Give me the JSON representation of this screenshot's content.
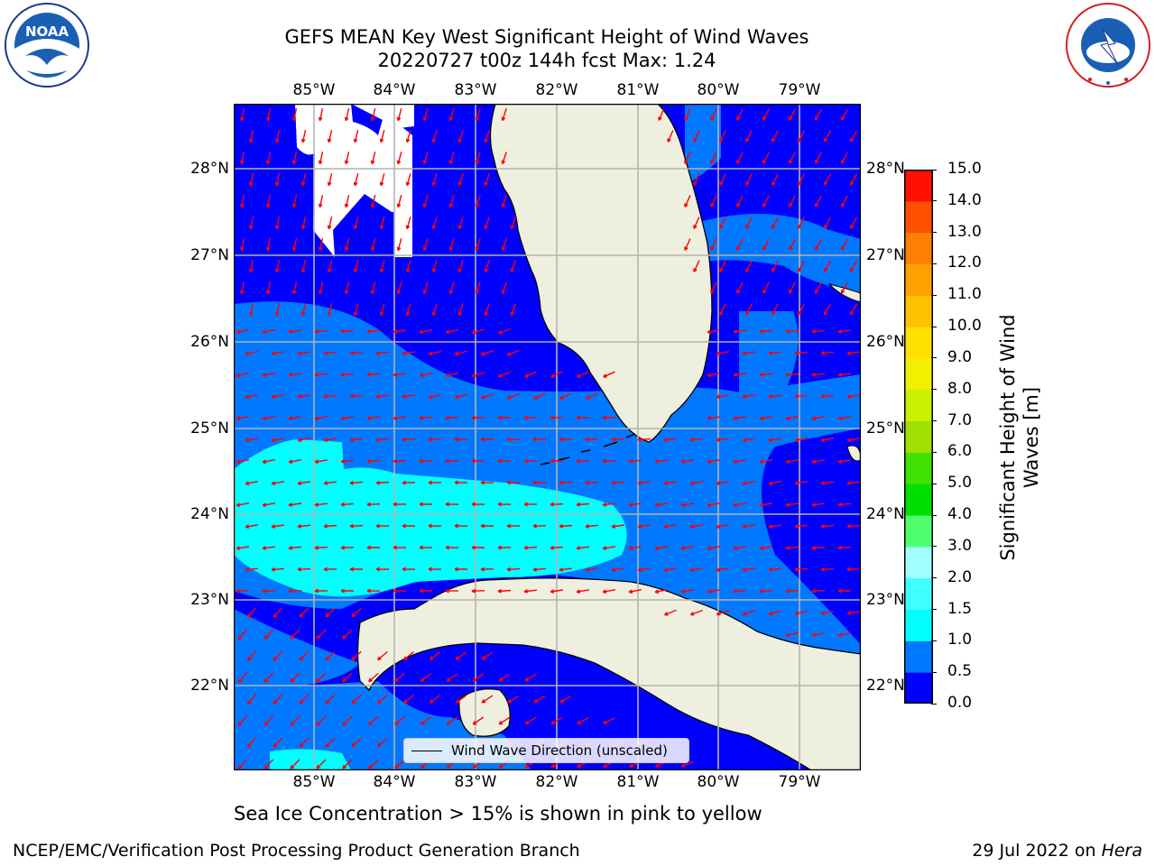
{
  "header": {
    "title_line1": "GEFS MEAN Key West Significant Height of Wind Waves",
    "title_line2": "20220727 t00z 144h fcst   Max: 1.24"
  },
  "logos": {
    "left": {
      "name": "noaa-logo",
      "text": "NOAA",
      "ring_text": "NATIONAL OCEANIC AND ATMOSPHERIC ADMINISTRATION · U.S. DEPARTMENT OF COMMERCE"
    },
    "right": {
      "name": "nws-logo",
      "ring_text": "NATIONAL WEATHER SERVICE"
    }
  },
  "map": {
    "lon_ticks": [
      "85°W",
      "84°W",
      "83°W",
      "82°W",
      "81°W",
      "80°W",
      "79°W"
    ],
    "lat_ticks": [
      "28°N",
      "27°N",
      "26°N",
      "25°N",
      "24°N",
      "23°N",
      "22°N"
    ],
    "legend_label": "Wind Wave Direction (unscaled)",
    "arrow_color": "#ff0000",
    "land_color": "#efefdf"
  },
  "colorbar": {
    "label_line1": "Significant Height of Wind",
    "label_line2": "Waves [m]",
    "ticks": [
      "0.0",
      "0.5",
      "1.0",
      "1.5",
      "2.0",
      "3.0",
      "4.0",
      "5.0",
      "6.0",
      "7.0",
      "8.0",
      "9.0",
      "10.0",
      "11.0",
      "12.0",
      "13.0",
      "14.0",
      "15.0"
    ],
    "colors": [
      "#0000ff",
      "#0078ff",
      "#00ffff",
      "#40ffff",
      "#a0ffff",
      "#50ff70",
      "#00e000",
      "#40e000",
      "#a0e000",
      "#c8f000",
      "#f0f000",
      "#ffe000",
      "#ffc000",
      "#ffa000",
      "#ff8000",
      "#ff5000",
      "#ff1000"
    ]
  },
  "notes": {
    "sea_ice": "Sea Ice Concentration > 15% is shown in pink to yellow"
  },
  "footer": {
    "left": "NCEP/EMC/Verification Post Processing Product Generation Branch",
    "right_prefix": "29 Jul 2022 on ",
    "right_host": "Hera"
  }
}
